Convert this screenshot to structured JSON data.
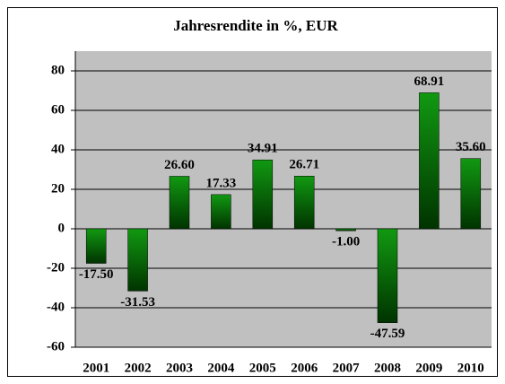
{
  "chart_data": {
    "type": "bar",
    "title": "Jahresrendite in %, EUR",
    "categories": [
      "2001",
      "2002",
      "2003",
      "2004",
      "2005",
      "2006",
      "2007",
      "2008",
      "2009",
      "2010"
    ],
    "values": [
      -17.5,
      -31.53,
      26.6,
      17.33,
      34.91,
      26.71,
      -1.0,
      -47.59,
      68.91,
      35.6
    ],
    "value_labels": [
      "-17.50",
      "-31.53",
      "26.60",
      "17.33",
      "34.91",
      "26.71",
      "-1.00",
      "-47.59",
      "68.91",
      "35.60"
    ],
    "color": "#119911",
    "ylim": [
      -60,
      90
    ],
    "yticks": [
      -60,
      -40,
      -20,
      0,
      20,
      40,
      60,
      80
    ],
    "grid": true
  }
}
